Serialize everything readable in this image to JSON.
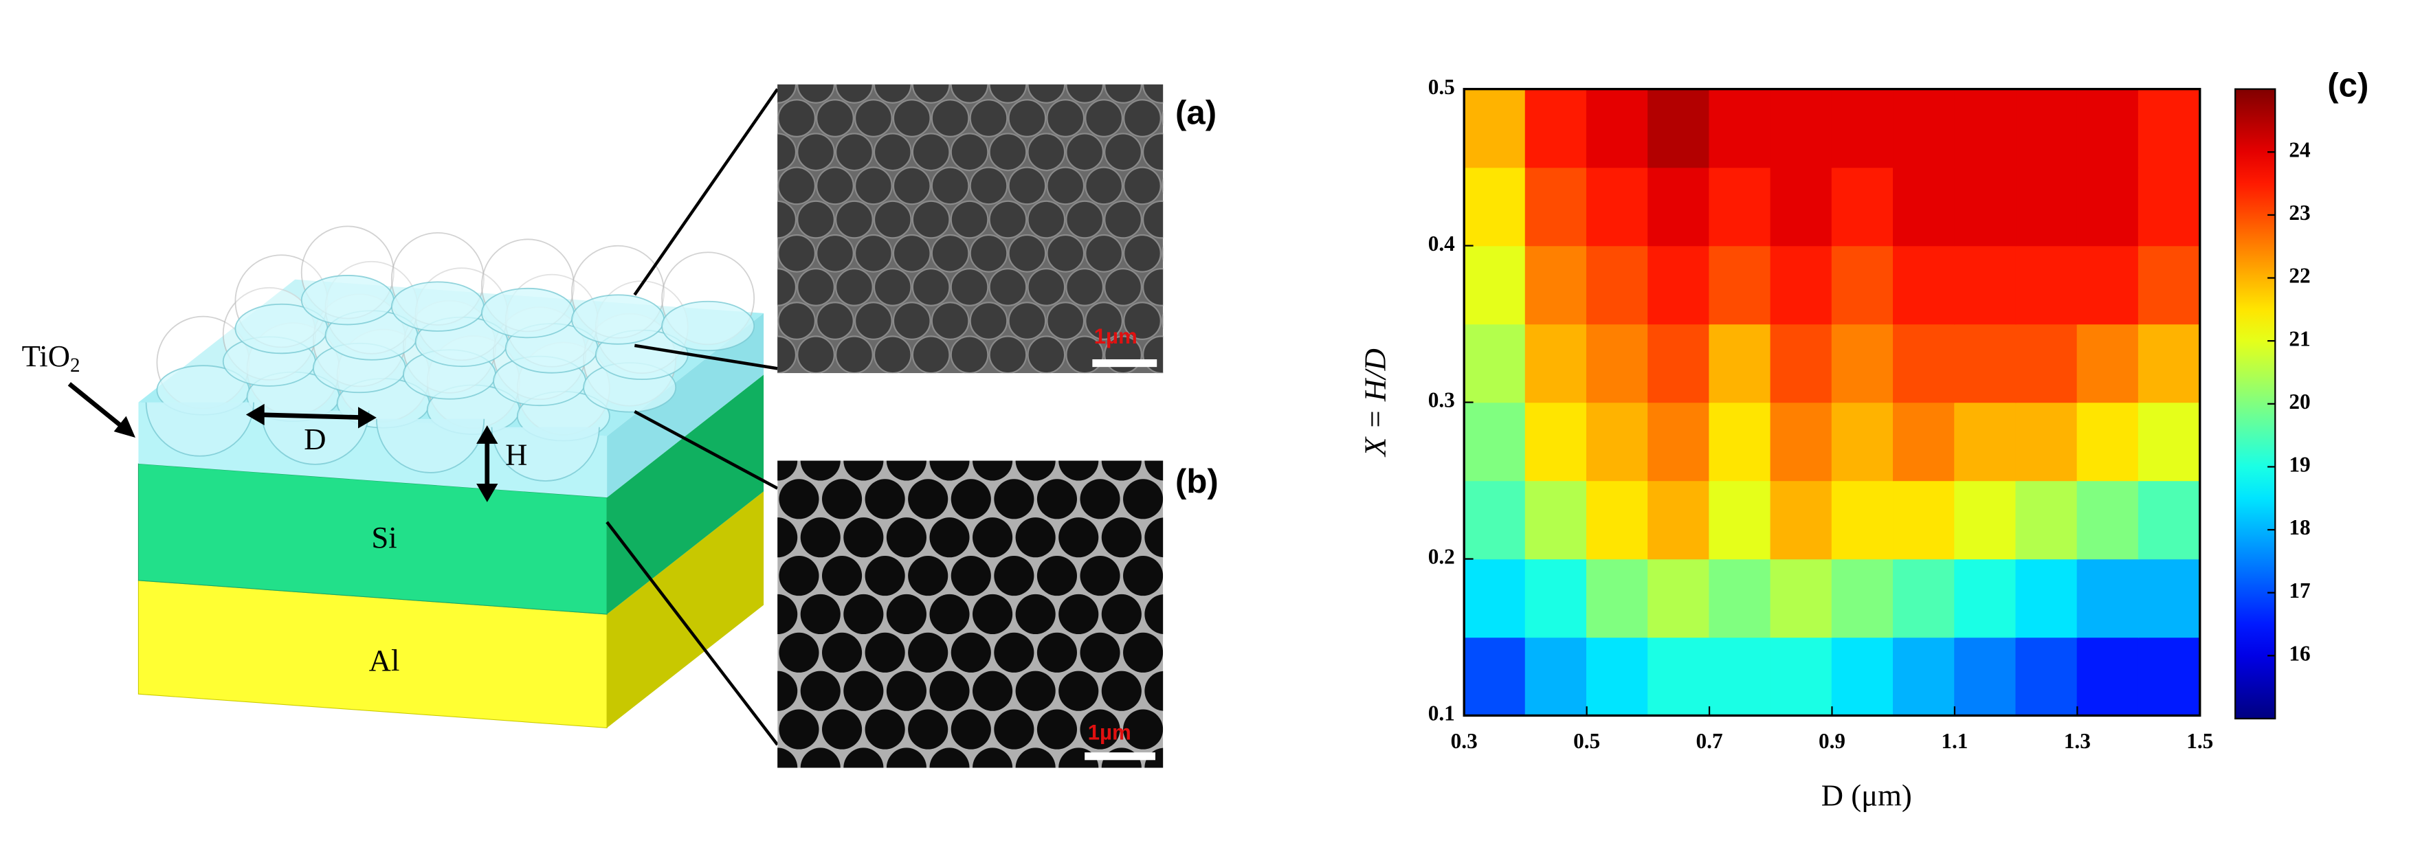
{
  "schematic": {
    "tio2": {
      "base": "TiO",
      "sub": "2"
    },
    "d_label": "D",
    "h_label": "H",
    "si_label": "Si",
    "al_label": "Al"
  },
  "panels": {
    "a": {
      "label": "(a)",
      "scale": "1µm"
    },
    "b": {
      "label": "(b)",
      "scale": "1µm"
    }
  },
  "chart_data": {
    "type": "heatmap",
    "panel_label": "(c)",
    "xlabel": "D (μm)",
    "ylabel": "X = H/D",
    "x": [
      0.35,
      0.45,
      0.55,
      0.65,
      0.75,
      0.85,
      0.95,
      1.05,
      1.15,
      1.25,
      1.35,
      1.45
    ],
    "y": [
      0.125,
      0.175,
      0.225,
      0.275,
      0.325,
      0.375,
      0.425,
      0.475
    ],
    "values": [
      [
        17,
        18,
        18.5,
        19,
        19,
        19,
        18.5,
        18,
        17.5,
        17,
        16.5,
        16.5
      ],
      [
        18.5,
        19,
        20,
        20.5,
        20,
        20.5,
        20,
        19.5,
        19,
        18.5,
        18,
        18
      ],
      [
        19.5,
        20.5,
        21.5,
        22,
        21,
        22,
        21.5,
        21.5,
        21,
        20.5,
        20,
        19.5
      ],
      [
        20,
        21.5,
        22,
        22.5,
        21.5,
        22.5,
        22,
        22.5,
        22,
        22,
        21.5,
        21
      ],
      [
        20.5,
        22,
        22.5,
        23,
        22,
        23,
        22.5,
        23,
        23,
        23,
        22.5,
        22
      ],
      [
        21,
        22.5,
        23,
        23.5,
        23,
        23.5,
        23,
        23.5,
        23.5,
        23.5,
        23.5,
        23
      ],
      [
        21.5,
        23,
        23.5,
        24,
        23.5,
        24,
        23.5,
        24,
        24,
        24,
        24,
        23.5
      ],
      [
        22,
        23.5,
        24,
        24.5,
        24,
        24,
        24,
        24,
        24,
        24,
        24,
        23.5
      ]
    ],
    "xlim": [
      0.3,
      1.5
    ],
    "xticks": [
      0.3,
      0.5,
      0.7,
      0.9,
      1.1,
      1.3,
      1.5
    ],
    "ylim": [
      0.1,
      0.5
    ],
    "yticks": [
      0.1,
      0.2,
      0.3,
      0.4,
      0.5
    ],
    "zlim": [
      15,
      25
    ],
    "zticks": [
      16,
      17,
      18,
      19,
      20,
      21,
      22,
      23,
      24
    ],
    "colormap": "jet"
  }
}
